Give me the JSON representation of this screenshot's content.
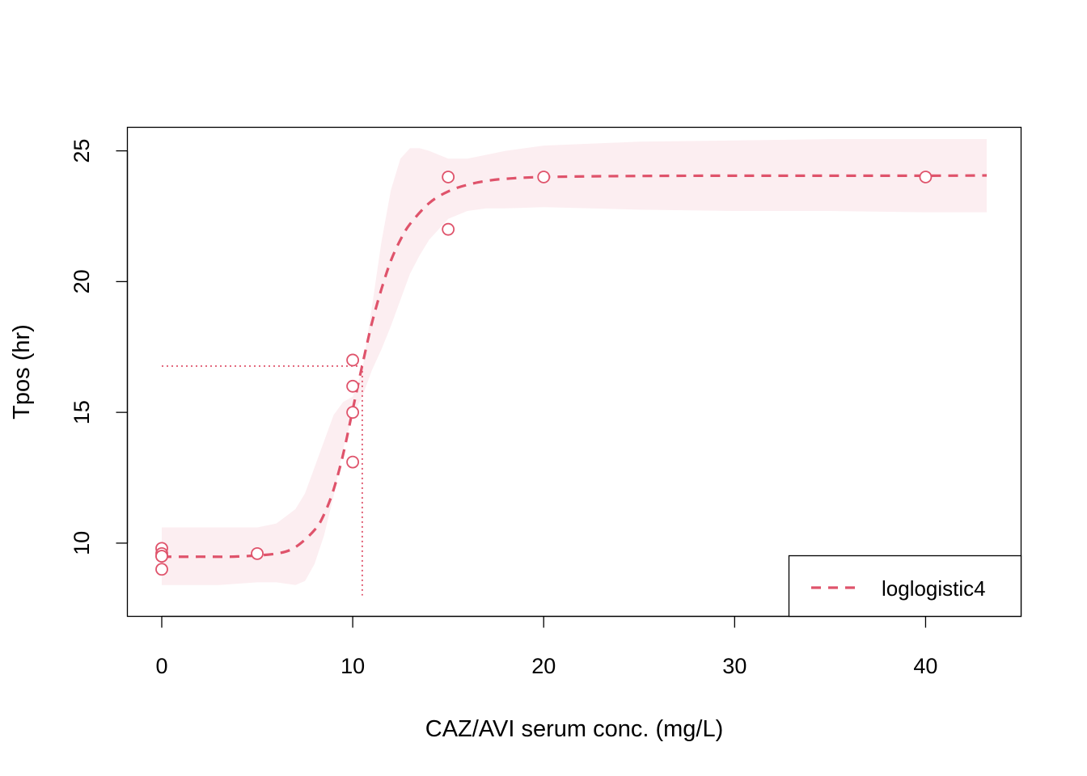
{
  "chart_data": {
    "type": "line",
    "xlabel": "CAZ/AVI serum conc. (mg/L)",
    "ylabel": "Tpos (hr)",
    "xlim": [
      -1.8,
      45
    ],
    "ylim": [
      7.2,
      25.9
    ],
    "x_ticks": [
      0,
      10,
      20,
      30,
      40
    ],
    "y_ticks": [
      10,
      15,
      20,
      25
    ],
    "legend": {
      "position": "bottom-right",
      "entries": [
        "loglogistic4"
      ]
    },
    "grid": false,
    "colors": {
      "series": "#DF536B",
      "band": "#FCEEF1",
      "axis": "#000000"
    },
    "points": {
      "x": [
        0,
        0,
        0,
        0,
        0,
        5,
        10,
        10,
        10,
        10,
        15,
        15,
        20,
        40
      ],
      "y": [
        9.8,
        9.6,
        9.5,
        9.5,
        9.0,
        9.6,
        17.0,
        16.0,
        15.0,
        13.1,
        24.0,
        22.0,
        24.0,
        24.0
      ]
    },
    "series": [
      {
        "name": "loglogistic4",
        "style": "dashed",
        "x": [
          0,
          2,
          4,
          6,
          7,
          8,
          8.5,
          9,
          9.5,
          10,
          10.5,
          11,
          11.5,
          12,
          12.5,
          13,
          14,
          15,
          16,
          17,
          18,
          20,
          25,
          30,
          35,
          40,
          43.2
        ],
        "y": [
          9.48,
          9.48,
          9.49,
          9.6,
          9.85,
          10.5,
          11.1,
          12.05,
          13.4,
          15.1,
          16.8,
          18.4,
          19.7,
          20.8,
          21.6,
          22.2,
          23.0,
          23.45,
          23.7,
          23.85,
          23.93,
          24.0,
          24.04,
          24.05,
          24.05,
          24.05,
          24.06
        ]
      }
    ],
    "confidence_band": {
      "x": [
        0,
        3,
        5,
        6,
        7,
        7.5,
        8,
        8.5,
        9,
        9.5,
        10,
        10.5,
        11,
        11.5,
        12,
        12.5,
        13,
        13.5,
        14,
        15,
        16,
        17,
        18,
        20,
        25,
        30,
        35,
        40,
        43.2
      ],
      "upper": [
        10.6,
        10.6,
        10.6,
        10.75,
        11.3,
        11.9,
        12.9,
        13.9,
        14.9,
        15.4,
        15.6,
        16.6,
        19.0,
        21.5,
        23.5,
        24.7,
        25.1,
        25.1,
        25.0,
        24.7,
        24.7,
        24.85,
        25.0,
        25.2,
        25.35,
        25.4,
        25.45,
        25.45,
        25.45
      ],
      "lower": [
        8.4,
        8.4,
        8.5,
        8.5,
        8.4,
        8.55,
        9.2,
        10.3,
        11.8,
        13.6,
        14.9,
        15.6,
        16.6,
        17.4,
        18.3,
        19.3,
        20.3,
        21.0,
        21.6,
        22.4,
        22.7,
        22.8,
        22.8,
        22.85,
        22.75,
        22.7,
        22.7,
        22.65,
        22.65
      ]
    },
    "reference_lines": {
      "ed50_x": 10.5,
      "ed50_y": 16.77
    }
  }
}
